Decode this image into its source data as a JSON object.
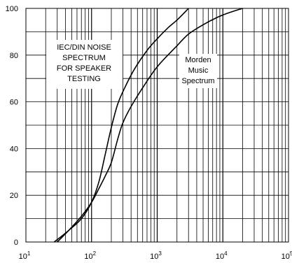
{
  "chart_data": {
    "type": "line",
    "title": "",
    "xlabel": "",
    "ylabel": "",
    "xscale": "log",
    "xlim": [
      10,
      100000
    ],
    "ylim": [
      0,
      100
    ],
    "x_ticks": [
      {
        "base": "10",
        "exp": "1",
        "value": 10
      },
      {
        "base": "10",
        "exp": "2",
        "value": 100
      },
      {
        "base": "10",
        "exp": "3",
        "value": 1000
      },
      {
        "base": "10",
        "exp": "4",
        "value": 10000
      },
      {
        "base": "10",
        "exp": "5",
        "value": 100000
      }
    ],
    "y_ticks": [
      {
        "label": "0",
        "value": 0
      },
      {
        "label": "20",
        "value": 20
      },
      {
        "label": "40",
        "value": 40
      },
      {
        "label": "60",
        "value": 60
      },
      {
        "label": "80",
        "value": 80
      },
      {
        "label": "100",
        "value": 100
      }
    ],
    "grid": true,
    "series": [
      {
        "color": "#000000",
        "x": [
          27,
          45,
          70,
          100,
          130,
          160,
          200,
          250,
          320,
          450,
          700,
          1000,
          1500,
          2000,
          3000
        ],
        "y": [
          0,
          5,
          10,
          17,
          26,
          37,
          49,
          59,
          66,
          74,
          82,
          87,
          92,
          95,
          100
        ]
      },
      {
        "color": "#000000",
        "x": [
          30,
          45,
          70,
          100,
          130,
          160,
          200,
          250,
          300,
          400,
          600,
          1000,
          2000,
          3000,
          5000,
          8000,
          12000,
          20000
        ],
        "y": [
          0,
          5,
          11,
          17,
          23,
          28,
          34,
          44,
          51,
          58,
          66,
          75,
          84,
          89,
          93,
          96,
          98,
          100
        ]
      }
    ],
    "annotations": [
      {
        "id": "iec",
        "lines": [
          "IEC/DIN NOISE",
          "SPECTRUM",
          "FOR SPEAKER",
          "TESTING"
        ]
      },
      {
        "id": "morden",
        "lines": [
          "Morden",
          "Music",
          "Spectrum"
        ]
      }
    ]
  }
}
